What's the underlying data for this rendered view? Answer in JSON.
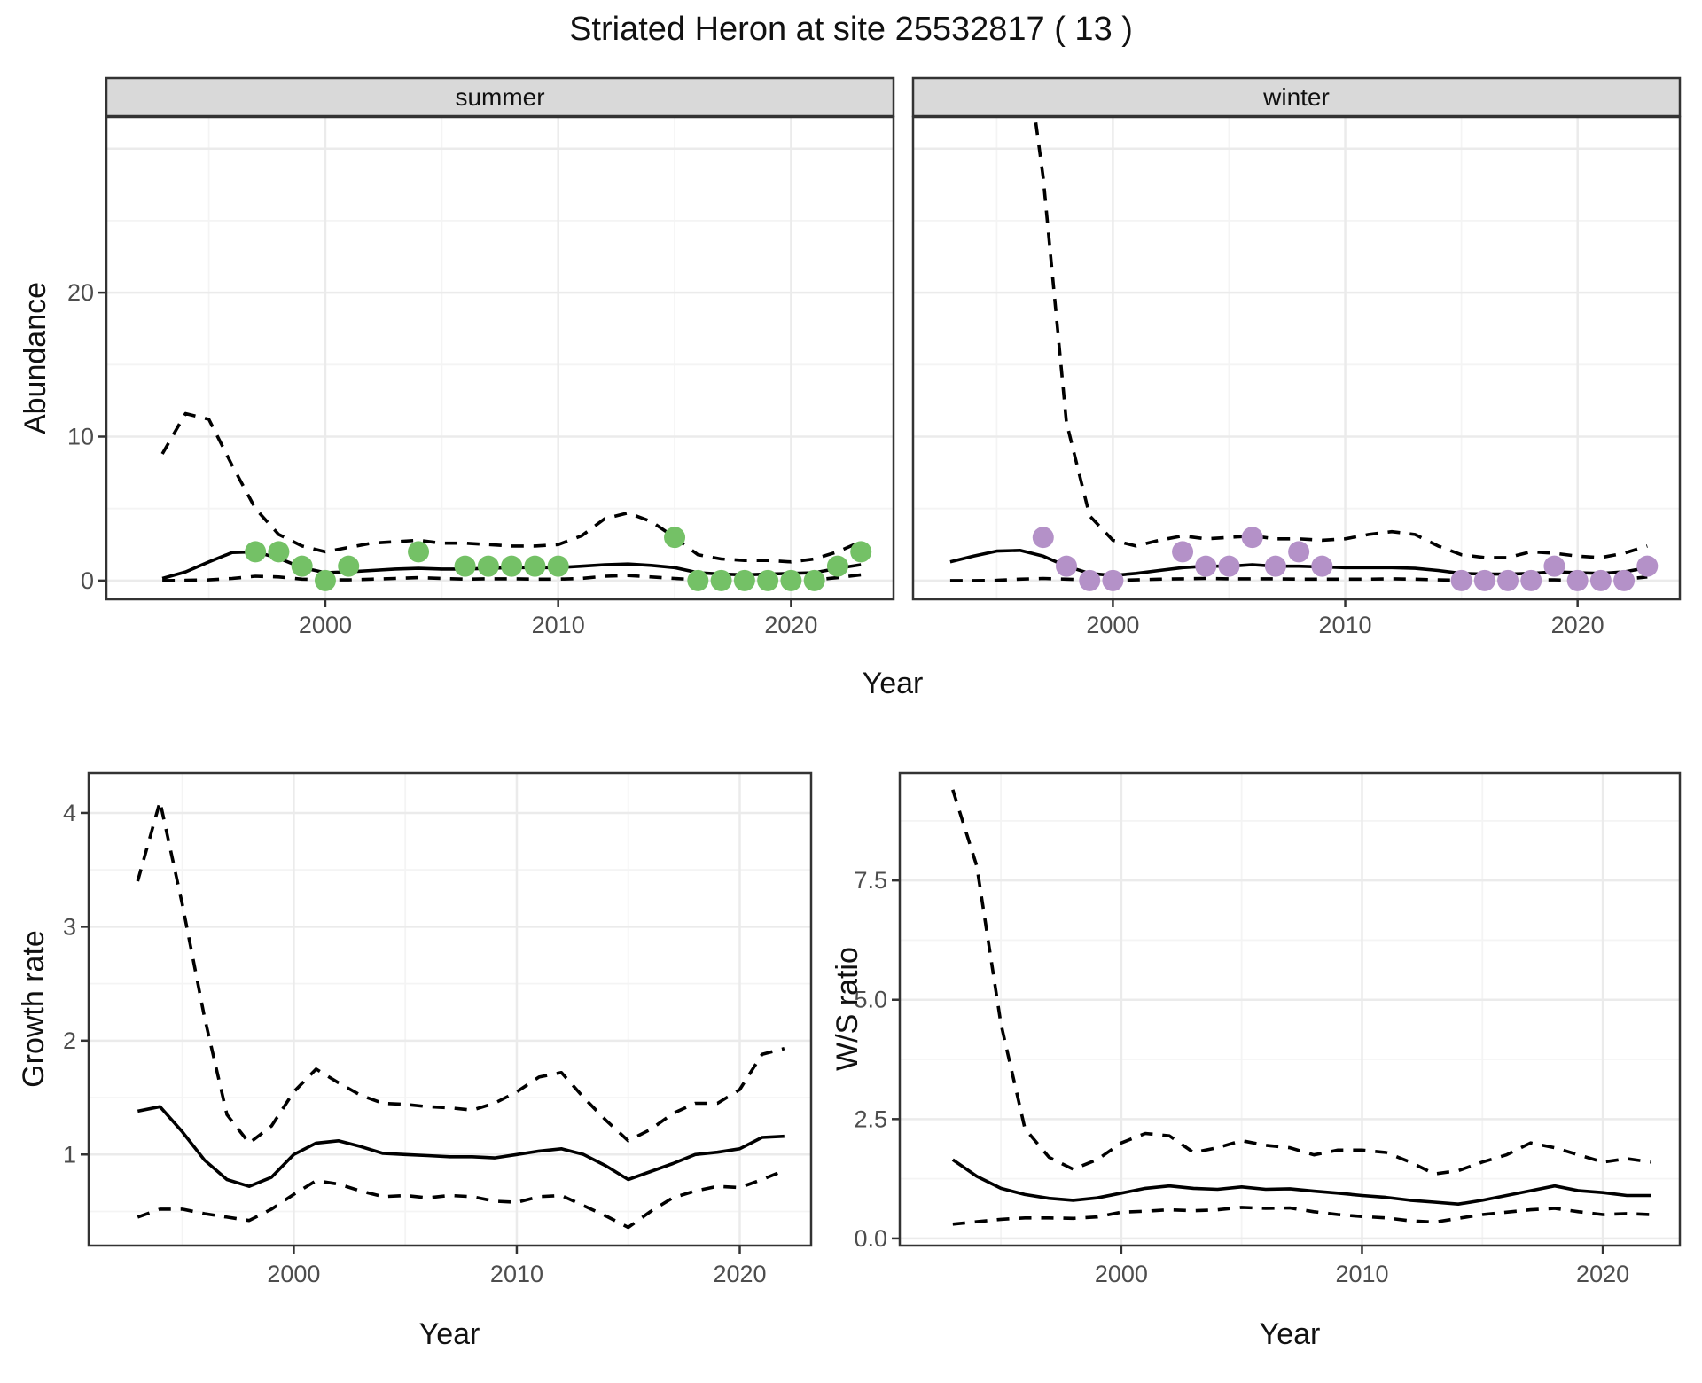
{
  "title": "Striated Heron at site 25532817 ( 13 )",
  "colors": {
    "summer_point": "#74c166",
    "winter_point": "#b491c8",
    "line": "#000000",
    "strip_bg": "#d9d9d9",
    "panel_border": "#333333",
    "grid_major": "#ebebeb",
    "grid_minor": "#f4f4f4",
    "tick_text": "#4d4d4d",
    "title_text": "#111111"
  },
  "chart_data": [
    {
      "id": "abundance-summer",
      "type": "line",
      "facet_label": "summer",
      "ylabel": "Abundance",
      "xlabel": "Year",
      "x_major_ticks": [
        2000,
        2010,
        2020
      ],
      "x_tick_labels": [
        "2000",
        "2010",
        "2020"
      ],
      "x_minor_ticks": [
        1995,
        2005,
        2015
      ],
      "y_major_ticks": [
        0,
        10,
        20,
        30
      ],
      "y_tick_labels": [
        "0",
        "10",
        "20",
        ""
      ],
      "y_minor_ticks": [
        5,
        15,
        25
      ],
      "xlim": [
        1990.6,
        2024.4
      ],
      "ylim": [
        -1.3,
        32.2
      ],
      "years": [
        1993,
        1994,
        1995,
        1996,
        1997,
        1998,
        1999,
        2000,
        2001,
        2002,
        2003,
        2004,
        2005,
        2006,
        2007,
        2008,
        2009,
        2010,
        2011,
        2012,
        2013,
        2014,
        2015,
        2016,
        2017,
        2018,
        2019,
        2020,
        2021,
        2022,
        2023
      ],
      "series": [
        {
          "name": "mean",
          "style": "solid",
          "values": [
            0.15,
            0.6,
            1.3,
            1.95,
            2.0,
            1.55,
            0.9,
            0.55,
            0.6,
            0.7,
            0.8,
            0.85,
            0.8,
            0.8,
            0.85,
            0.9,
            0.9,
            0.9,
            1.0,
            1.1,
            1.15,
            1.05,
            0.9,
            0.55,
            0.45,
            0.4,
            0.45,
            0.5,
            0.55,
            0.85,
            1.1
          ]
        },
        {
          "name": "upper-95ci",
          "style": "dashed",
          "values": [
            8.8,
            11.6,
            11.2,
            8.0,
            5.0,
            3.2,
            2.4,
            2.0,
            2.3,
            2.6,
            2.7,
            2.8,
            2.6,
            2.6,
            2.5,
            2.4,
            2.4,
            2.5,
            3.1,
            4.3,
            4.7,
            4.1,
            3.0,
            1.8,
            1.5,
            1.4,
            1.4,
            1.3,
            1.5,
            2.0,
            2.7
          ]
        },
        {
          "name": "lower-95ci",
          "style": "dashed",
          "values": [
            0,
            0.02,
            0.05,
            0.15,
            0.3,
            0.25,
            0.1,
            0.05,
            0.05,
            0.1,
            0.15,
            0.2,
            0.15,
            0.1,
            0.12,
            0.12,
            0.1,
            0.1,
            0.15,
            0.3,
            0.35,
            0.25,
            0.15,
            0.05,
            0.02,
            0.02,
            0.02,
            0.02,
            0.05,
            0.2,
            0.4
          ]
        }
      ],
      "observations": {
        "name": "observed-abundance-summer",
        "color": "#74c166",
        "years": [
          1997,
          1998,
          1999,
          2000,
          2001,
          2004,
          2006,
          2007,
          2008,
          2009,
          2010,
          2015,
          2016,
          2017,
          2018,
          2019,
          2020,
          2021,
          2022,
          2023
        ],
        "values": [
          2,
          2,
          1,
          0,
          1,
          2,
          1,
          1,
          1,
          1,
          1,
          3,
          0,
          0,
          0,
          0,
          0,
          0,
          1,
          2
        ]
      }
    },
    {
      "id": "abundance-winter",
      "type": "line",
      "facet_label": "winter",
      "ylabel": "Abundance",
      "xlabel": "Year",
      "x_major_ticks": [
        2000,
        2010,
        2020
      ],
      "x_tick_labels": [
        "2000",
        "2010",
        "2020"
      ],
      "x_minor_ticks": [
        1995,
        2005,
        2015
      ],
      "y_major_ticks": [
        0,
        10,
        20,
        30
      ],
      "y_tick_labels": [
        "",
        "",
        "",
        ""
      ],
      "y_minor_ticks": [
        5,
        15,
        25
      ],
      "xlim": [
        1991.4,
        2024.4
      ],
      "ylim": [
        -1.3,
        32.2
      ],
      "years": [
        1993,
        1994,
        1995,
        1996,
        1997,
        1998,
        1999,
        2000,
        2001,
        2002,
        2003,
        2004,
        2005,
        2006,
        2007,
        2008,
        2009,
        2010,
        2011,
        2012,
        2013,
        2014,
        2015,
        2016,
        2017,
        2018,
        2019,
        2020,
        2021,
        2022,
        2023
      ],
      "series": [
        {
          "name": "mean",
          "style": "solid",
          "values": [
            1.3,
            1.7,
            2.05,
            2.1,
            1.7,
            1.0,
            0.5,
            0.35,
            0.5,
            0.7,
            0.9,
            1.0,
            1.0,
            1.1,
            1.0,
            1.0,
            0.95,
            0.9,
            0.9,
            0.9,
            0.85,
            0.7,
            0.5,
            0.45,
            0.45,
            0.5,
            0.6,
            0.55,
            0.5,
            0.6,
            0.9
          ]
        },
        {
          "name": "upper-95ci",
          "style": "dashed",
          "values": [
            90,
            70,
            52,
            40,
            28,
            11,
            4.5,
            2.8,
            2.4,
            2.8,
            3.1,
            2.9,
            3.0,
            3.1,
            2.9,
            2.9,
            2.8,
            2.9,
            3.2,
            3.4,
            3.2,
            2.4,
            1.8,
            1.6,
            1.6,
            2.0,
            1.9,
            1.7,
            1.6,
            1.9,
            2.4
          ]
        },
        {
          "name": "lower-95ci",
          "style": "dashed",
          "values": [
            0,
            0,
            0.02,
            0.1,
            0.15,
            0.1,
            0.05,
            0.02,
            0.05,
            0.1,
            0.12,
            0.15,
            0.12,
            0.12,
            0.12,
            0.1,
            0.1,
            0.1,
            0.1,
            0.12,
            0.1,
            0.05,
            0.02,
            0.02,
            0.02,
            0.05,
            0.05,
            0.02,
            0.02,
            0.1,
            0.25
          ]
        }
      ],
      "observations": {
        "name": "observed-abundance-winter",
        "color": "#b491c8",
        "years": [
          1997,
          1998,
          1999,
          2000,
          2003,
          2004,
          2005,
          2006,
          2007,
          2008,
          2009,
          2015,
          2016,
          2017,
          2018,
          2019,
          2020,
          2021,
          2022,
          2023
        ],
        "values": [
          3,
          1,
          0,
          0,
          2,
          1,
          1,
          3,
          1,
          2,
          1,
          0,
          0,
          0,
          0,
          1,
          0,
          0,
          0,
          1
        ]
      }
    },
    {
      "id": "growth-rate",
      "type": "line",
      "facet_label": "",
      "ylabel": "Growth rate",
      "xlabel": "Year",
      "x_major_ticks": [
        2000,
        2010,
        2020
      ],
      "x_tick_labels": [
        "2000",
        "2010",
        "2020"
      ],
      "x_minor_ticks": [
        1995,
        2005,
        2015
      ],
      "y_major_ticks": [
        1,
        2,
        3,
        4
      ],
      "y_tick_labels": [
        "1",
        "2",
        "3",
        "4"
      ],
      "y_minor_ticks": [
        0.5,
        1.5,
        2.5,
        3.5
      ],
      "xlim": [
        1990.8,
        2023.2
      ],
      "ylim": [
        0.2,
        4.35
      ],
      "years": [
        1993,
        1994,
        1995,
        1996,
        1997,
        1998,
        1999,
        2000,
        2001,
        2002,
        2003,
        2004,
        2005,
        2006,
        2007,
        2008,
        2009,
        2010,
        2011,
        2012,
        2013,
        2014,
        2015,
        2016,
        2017,
        2018,
        2019,
        2020,
        2021,
        2022
      ],
      "series": [
        {
          "name": "mean",
          "style": "solid",
          "values": [
            1.38,
            1.42,
            1.2,
            0.95,
            0.78,
            0.72,
            0.8,
            1.0,
            1.1,
            1.12,
            1.07,
            1.01,
            1.0,
            0.99,
            0.98,
            0.98,
            0.97,
            1.0,
            1.03,
            1.05,
            1.0,
            0.9,
            0.78,
            0.85,
            0.92,
            1.0,
            1.02,
            1.05,
            1.15,
            1.16
          ]
        },
        {
          "name": "upper-95ci",
          "style": "dashed",
          "values": [
            3.4,
            4.1,
            3.2,
            2.2,
            1.35,
            1.1,
            1.25,
            1.55,
            1.75,
            1.63,
            1.52,
            1.45,
            1.44,
            1.42,
            1.41,
            1.39,
            1.45,
            1.55,
            1.68,
            1.72,
            1.5,
            1.3,
            1.12,
            1.22,
            1.36,
            1.45,
            1.45,
            1.57,
            1.88,
            1.93
          ]
        },
        {
          "name": "lower-95ci",
          "style": "dashed",
          "values": [
            0.45,
            0.52,
            0.52,
            0.48,
            0.45,
            0.42,
            0.52,
            0.65,
            0.77,
            0.74,
            0.68,
            0.63,
            0.64,
            0.62,
            0.64,
            0.63,
            0.59,
            0.58,
            0.63,
            0.64,
            0.55,
            0.46,
            0.36,
            0.5,
            0.62,
            0.68,
            0.72,
            0.71,
            0.78,
            0.86
          ]
        }
      ]
    },
    {
      "id": "ws-ratio",
      "type": "line",
      "facet_label": "",
      "ylabel": "W/S ratio",
      "xlabel": "Year",
      "x_major_ticks": [
        2000,
        2010,
        2020
      ],
      "x_tick_labels": [
        "2000",
        "2010",
        "2020"
      ],
      "x_minor_ticks": [
        1995,
        2005,
        2015
      ],
      "y_major_ticks": [
        0,
        2.5,
        5,
        7.5
      ],
      "y_tick_labels": [
        "0.0",
        "2.5",
        "5.0",
        "7.5"
      ],
      "y_minor_ticks": [
        1.25,
        3.75,
        6.25,
        8.75
      ],
      "xlim": [
        1990.8,
        2023.2
      ],
      "ylim": [
        -0.15,
        9.75
      ],
      "years": [
        1993,
        1994,
        1995,
        1996,
        1997,
        1998,
        1999,
        2000,
        2001,
        2002,
        2003,
        2004,
        2005,
        2006,
        2007,
        2008,
        2009,
        2010,
        2011,
        2012,
        2013,
        2014,
        2015,
        2016,
        2017,
        2018,
        2019,
        2020,
        2021,
        2022
      ],
      "series": [
        {
          "name": "mean",
          "style": "solid",
          "values": [
            1.65,
            1.3,
            1.05,
            0.92,
            0.84,
            0.8,
            0.85,
            0.95,
            1.05,
            1.1,
            1.05,
            1.03,
            1.08,
            1.03,
            1.04,
            0.99,
            0.95,
            0.9,
            0.86,
            0.8,
            0.76,
            0.72,
            0.8,
            0.9,
            1.0,
            1.1,
            1.0,
            0.96,
            0.9,
            0.9
          ]
        },
        {
          "name": "upper-95ci",
          "style": "dashed",
          "values": [
            9.4,
            7.8,
            4.5,
            2.3,
            1.7,
            1.45,
            1.65,
            2.0,
            2.2,
            2.15,
            1.8,
            1.9,
            2.05,
            1.95,
            1.9,
            1.75,
            1.85,
            1.85,
            1.8,
            1.6,
            1.35,
            1.42,
            1.6,
            1.75,
            2.0,
            1.9,
            1.75,
            1.6,
            1.67,
            1.6
          ]
        },
        {
          "name": "lower-95ci",
          "style": "dashed",
          "values": [
            0.3,
            0.35,
            0.4,
            0.43,
            0.43,
            0.42,
            0.45,
            0.55,
            0.57,
            0.6,
            0.58,
            0.6,
            0.65,
            0.63,
            0.64,
            0.56,
            0.5,
            0.46,
            0.43,
            0.37,
            0.34,
            0.42,
            0.5,
            0.55,
            0.6,
            0.63,
            0.56,
            0.5,
            0.52,
            0.5
          ]
        }
      ]
    }
  ]
}
